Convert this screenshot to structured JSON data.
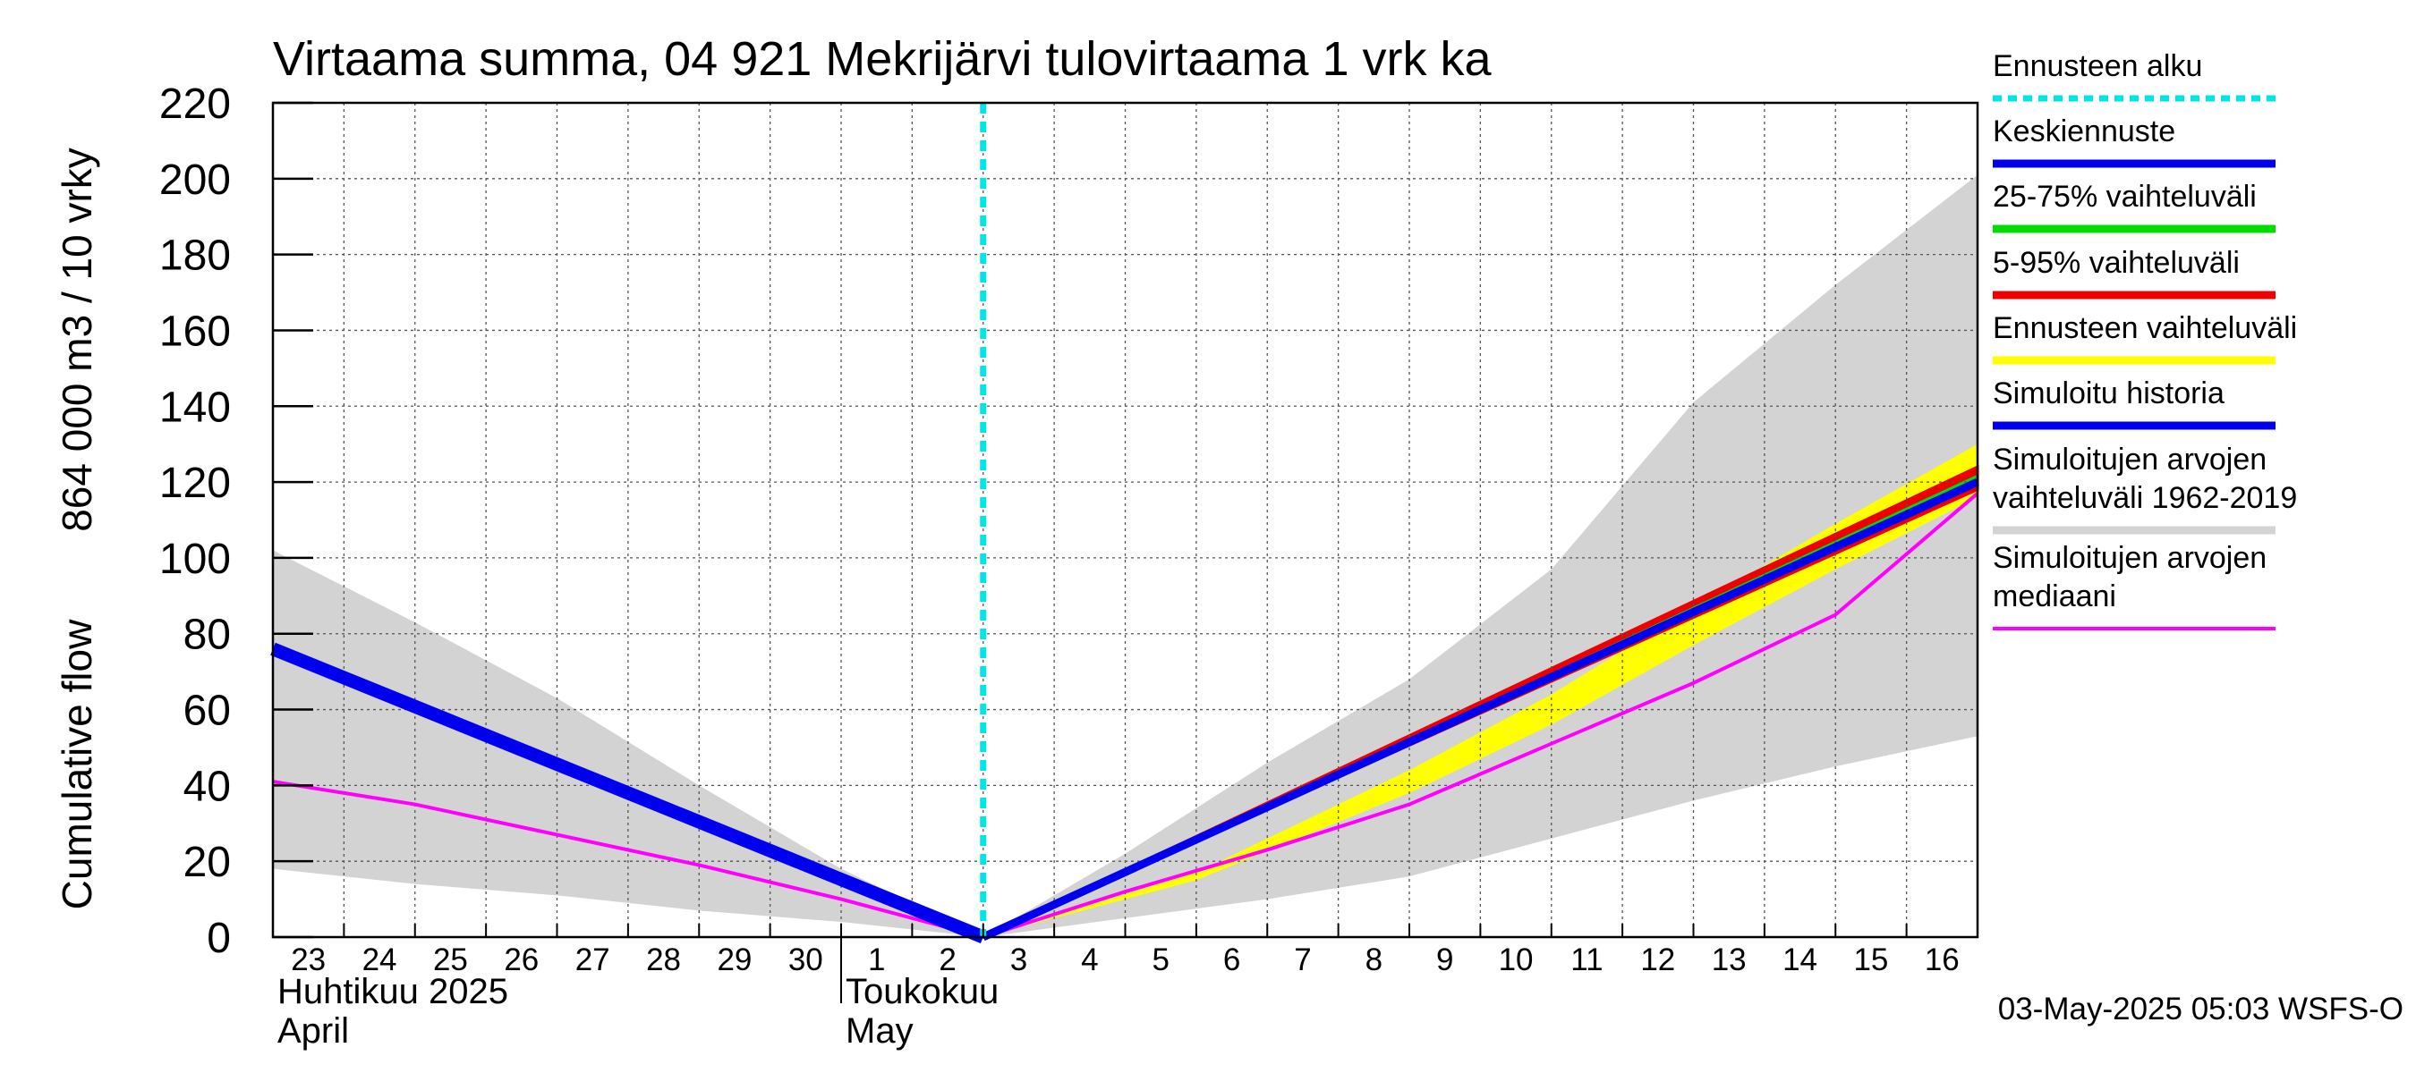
{
  "chart_data": {
    "type": "line",
    "title": "Virtaama summa, 04 921 Mekrijärvi tulovirtaama 1 vrk ka",
    "ylabel_lines": [
      "864 000 m3 / 10 vrky",
      "Cumulative flow"
    ],
    "ylim": [
      0,
      220
    ],
    "yticks": [
      0,
      20,
      40,
      60,
      80,
      100,
      120,
      140,
      160,
      180,
      200,
      220
    ],
    "xrange": [
      0,
      24
    ],
    "day_labels": [
      "23",
      "24",
      "25",
      "26",
      "27",
      "28",
      "29",
      "30",
      "1",
      "2",
      "3",
      "4",
      "5",
      "6",
      "7",
      "8",
      "9",
      "10",
      "11",
      "12",
      "13",
      "14",
      "15",
      "16"
    ],
    "month_labels": [
      {
        "at": 0,
        "lines": [
          "Huhtikuu  2025",
          "April"
        ]
      },
      {
        "at": 8,
        "lines": [
          "Toukokuu",
          "May"
        ]
      }
    ],
    "month_separator_at": 8,
    "forecast_start": 10,
    "hist_range": {
      "x": [
        0,
        2,
        4,
        6,
        8,
        10,
        12,
        14,
        16,
        18,
        20,
        22,
        24
      ],
      "low": [
        18,
        14,
        11,
        7,
        4,
        0,
        5,
        10,
        16,
        26,
        36,
        45,
        53
      ],
      "high": [
        102,
        83,
        63,
        40,
        18,
        0,
        22,
        46,
        68,
        97,
        141,
        172,
        201
      ]
    },
    "hist_median": {
      "x": [
        0,
        2,
        4,
        6,
        8,
        10,
        12,
        14,
        16,
        18,
        20,
        22,
        24
      ],
      "y": [
        41,
        35,
        27,
        19,
        10,
        0,
        12,
        23,
        35,
        51,
        67,
        85,
        117
      ]
    },
    "forecast_range": {
      "x": [
        10,
        13,
        16,
        18,
        20,
        22,
        24
      ],
      "low": [
        0,
        15,
        38,
        56,
        77,
        97,
        116
      ],
      "high": [
        0,
        17,
        44,
        64,
        87,
        109,
        130
      ]
    },
    "band_5_95": {
      "x": [
        10,
        24
      ],
      "low": [
        0,
        118
      ],
      "high": [
        0,
        124
      ]
    },
    "band_25_75": {
      "x": [
        10,
        24
      ],
      "low": [
        0,
        119
      ],
      "high": [
        0,
        122
      ]
    },
    "simulated_history": {
      "x": [
        0,
        10
      ],
      "y": [
        76,
        0
      ]
    },
    "median_forecast": {
      "x": [
        10,
        24
      ],
      "y": [
        0,
        120
      ]
    },
    "legend": [
      {
        "label": "Ennusteen alku",
        "color": "#00e5e5",
        "style": "dotted"
      },
      {
        "label": "Keskiennuste",
        "color": "#0000ee",
        "style": "solid"
      },
      {
        "label": "25-75% vaihteluväli",
        "color": "#00dd00",
        "style": "solid"
      },
      {
        "label": "5-95% vaihteluväli",
        "color": "#ee0000",
        "style": "solid"
      },
      {
        "label": "Ennusteen vaihteluväli",
        "color": "#ffff00",
        "style": "solid"
      },
      {
        "label": "Simuloitu historia",
        "color": "#0000ee",
        "style": "solid"
      },
      {
        "label": "Simuloitujen arvojen|vaihteluväli 1962-2019",
        "color": "#d3d3d3",
        "style": "solid"
      },
      {
        "label": "Simuloitujen arvojen|mediaani",
        "color": "#ff00ff",
        "style": "thin"
      }
    ],
    "footer": "03-May-2025 05:03 WSFS-O"
  }
}
